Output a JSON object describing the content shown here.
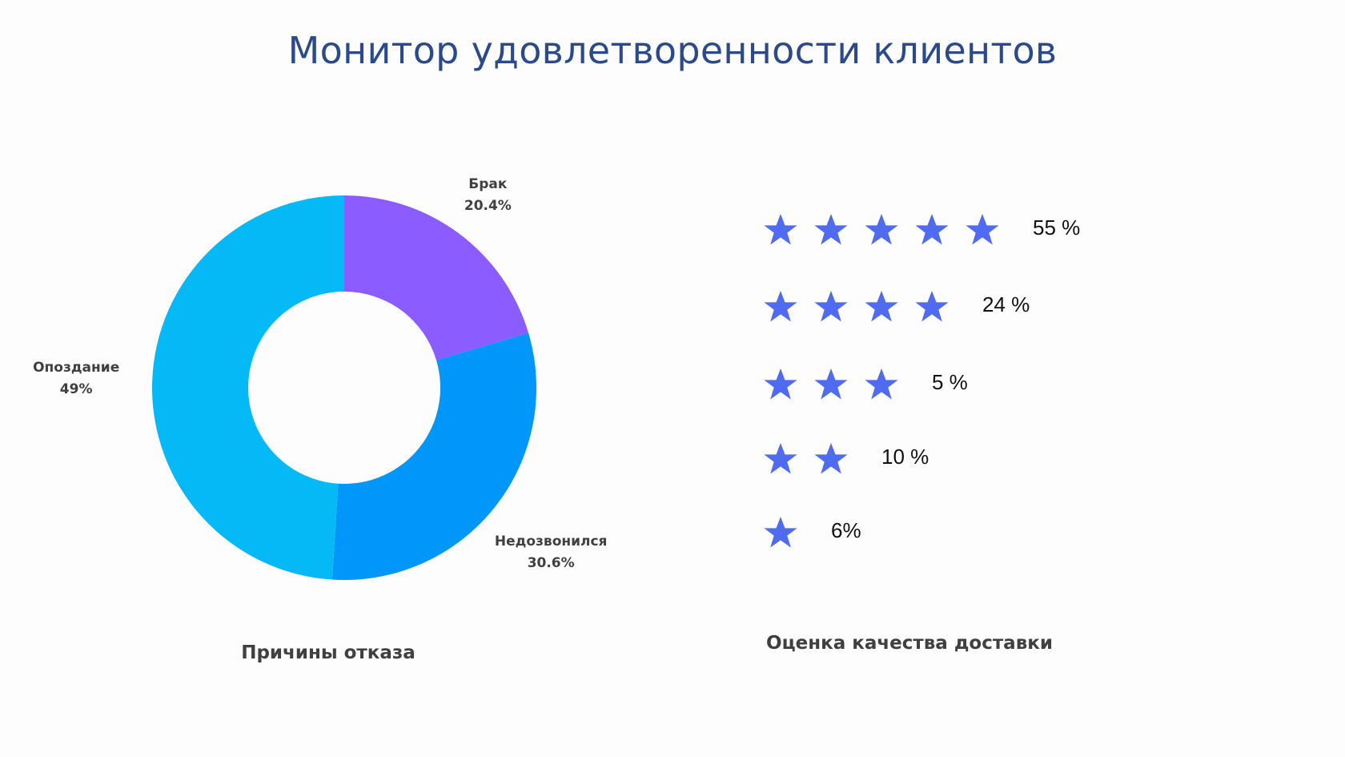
{
  "title": "Монитор удовлетворенности клиентов",
  "colors": {
    "title": "#2b4a8b",
    "star": "#4f6bf0",
    "label": "#404040"
  },
  "chart_data": [
    {
      "type": "pie",
      "variant": "donut",
      "caption": "Причины отказа",
      "slices": [
        {
          "label": "Брак",
          "value": 20.4,
          "value_text": "20.4%",
          "color": "#8b5cff"
        },
        {
          "label": "Недозвонился",
          "value": 30.6,
          "value_text": "30.6%",
          "color": "#0096fa"
        },
        {
          "label": "Опоздание",
          "value": 49,
          "value_text": "49%",
          "color": "#05b9f6"
        }
      ],
      "start": "top",
      "direction": "clockwise"
    },
    {
      "type": "table",
      "caption": "Оценка качества доставки",
      "icon": "star-icon",
      "rows": [
        {
          "stars": 5,
          "value": 55,
          "value_text": "55 %"
        },
        {
          "stars": 4,
          "value": 24,
          "value_text": "24 %"
        },
        {
          "stars": 3,
          "value": 5,
          "value_text": "5 %"
        },
        {
          "stars": 2,
          "value": 10,
          "value_text": "10 %"
        },
        {
          "stars": 1,
          "value": 6,
          "value_text": "6%"
        }
      ]
    }
  ]
}
